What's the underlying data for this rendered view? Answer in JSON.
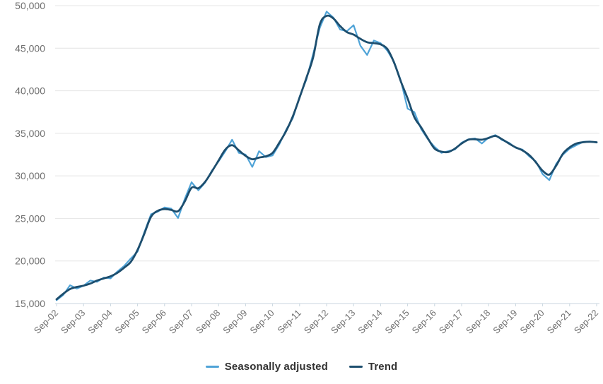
{
  "chart_data": {
    "type": "line",
    "title": "",
    "xlabel": "",
    "ylabel": "",
    "x_frequency": "quarterly",
    "x_tick_labels": [
      "Sep-02",
      "Sep-03",
      "Sep-04",
      "Sep-05",
      "Sep-06",
      "Sep-07",
      "Sep-08",
      "Sep-09",
      "Sep-10",
      "Sep-11",
      "Sep-12",
      "Sep-13",
      "Sep-14",
      "Sep-15",
      "Sep-16",
      "Sep-17",
      "Sep-18",
      "Sep-19",
      "Sep-20",
      "Sep-21",
      "Sep-22"
    ],
    "x_ticks_per_label": 4,
    "ylim": [
      15000,
      50000
    ],
    "y_ticks": [
      15000,
      20000,
      25000,
      30000,
      35000,
      40000,
      45000,
      50000
    ],
    "grid": "horizontal",
    "legend_position": "bottom-center",
    "series": [
      {
        "name": "Seasonally adjusted",
        "color": "#4FA3D7",
        "stroke_width": 2.2,
        "line_style": "angular",
        "values": [
          15400,
          16000,
          17150,
          16750,
          17100,
          17700,
          17550,
          18050,
          17950,
          18750,
          19400,
          20300,
          21100,
          23400,
          25500,
          25800,
          26300,
          26150,
          25050,
          27300,
          29250,
          28300,
          29200,
          30600,
          31700,
          32900,
          34250,
          32700,
          32500,
          31050,
          32900,
          32200,
          32400,
          33700,
          35400,
          36800,
          39300,
          41300,
          44300,
          47400,
          49300,
          48600,
          47200,
          47000,
          47700,
          45300,
          44200,
          45900,
          45600,
          44700,
          43400,
          41200,
          37900,
          37500,
          35500,
          34300,
          33400,
          32700,
          32900,
          33100,
          33900,
          34300,
          34400,
          33800,
          34500,
          34800,
          34200,
          33900,
          33300,
          33100,
          32300,
          31700,
          30200,
          29500,
          31400,
          32500,
          33200,
          33600,
          34000,
          34050,
          33900
        ]
      },
      {
        "name": "Trend",
        "color": "#1D4E6E",
        "stroke_width": 2.8,
        "line_style": "smooth",
        "values": [
          15500,
          16150,
          16700,
          16950,
          17100,
          17350,
          17700,
          17950,
          18200,
          18600,
          19200,
          19900,
          21300,
          23200,
          25200,
          25900,
          26100,
          26000,
          25850,
          27000,
          28600,
          28550,
          29300,
          30500,
          31800,
          33100,
          33600,
          33000,
          32350,
          31950,
          32150,
          32300,
          32700,
          33900,
          35250,
          37000,
          39200,
          41500,
          43900,
          47800,
          48800,
          48500,
          47600,
          46900,
          46600,
          46100,
          45700,
          45600,
          45450,
          44900,
          43300,
          41100,
          39100,
          36900,
          35700,
          34400,
          33200,
          32850,
          32800,
          33200,
          33800,
          34250,
          34300,
          34250,
          34450,
          34700,
          34300,
          33800,
          33350,
          33000,
          32450,
          31600,
          30600,
          30150,
          31200,
          32600,
          33350,
          33800,
          33950,
          34000,
          33950
        ]
      }
    ]
  },
  "style": {
    "gridline_color": "#e4e4e4",
    "axis_line_color": "#c8d6df",
    "tick_color": "#c8d6df",
    "axis_label_color": "#6e6e6e",
    "legend_text_color": "#333333",
    "background_color": "#ffffff"
  },
  "legend": {
    "items": [
      {
        "label": "Seasonally adjusted",
        "color": "#4FA3D7"
      },
      {
        "label": "Trend",
        "color": "#1D4E6E"
      }
    ]
  }
}
